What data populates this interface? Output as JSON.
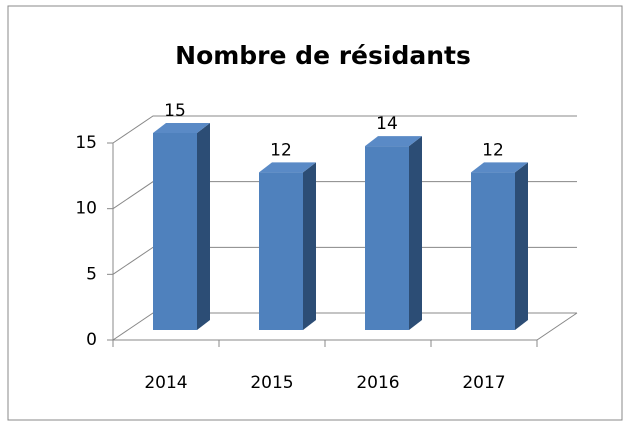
{
  "chart_data": {
    "type": "bar3d",
    "title": "Nombre de résidants",
    "categories": [
      "2014",
      "2015",
      "2016",
      "2017"
    ],
    "values": [
      15,
      12,
      14,
      12
    ],
    "color": "#4f81bd",
    "ylim": [
      0,
      15
    ],
    "yticks": [
      0,
      5,
      10,
      15
    ],
    "grid": true
  }
}
